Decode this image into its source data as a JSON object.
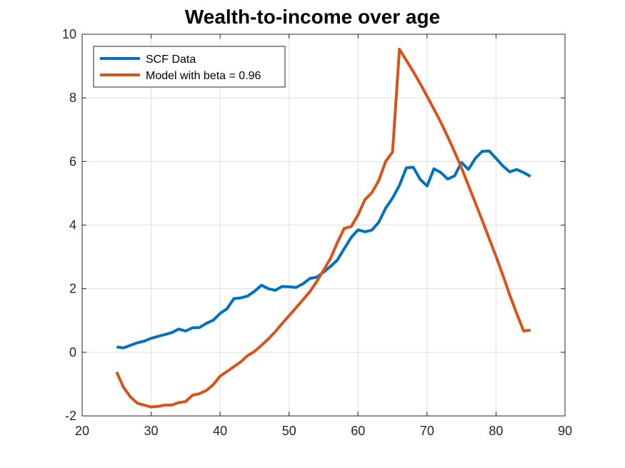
{
  "chart_data": {
    "type": "line",
    "title": "Wealth-to-income over age",
    "xlabel": "",
    "ylabel": "",
    "xlim": [
      20,
      90
    ],
    "ylim": [
      -2,
      10
    ],
    "xticks": [
      20,
      30,
      40,
      50,
      60,
      70,
      80,
      90
    ],
    "yticks": [
      -2,
      0,
      2,
      4,
      6,
      8,
      10
    ],
    "grid": true,
    "legend_position": "top-left",
    "series": [
      {
        "name": "SCF Data",
        "color": "#0072BD",
        "x": [
          25,
          26,
          27,
          28,
          29,
          30,
          31,
          32,
          33,
          34,
          35,
          36,
          37,
          38,
          39,
          40,
          41,
          42,
          43,
          44,
          45,
          46,
          47,
          48,
          49,
          50,
          51,
          52,
          53,
          54,
          55,
          56,
          57,
          58,
          59,
          60,
          61,
          62,
          63,
          64,
          65,
          66,
          67,
          68,
          69,
          70,
          71,
          72,
          73,
          74,
          75,
          76,
          77,
          78,
          79,
          80,
          81,
          82,
          83,
          84,
          85
        ],
        "y": [
          0.17,
          0.14,
          0.22,
          0.3,
          0.35,
          0.44,
          0.5,
          0.56,
          0.62,
          0.73,
          0.67,
          0.77,
          0.78,
          0.91,
          1.01,
          1.22,
          1.37,
          1.69,
          1.71,
          1.77,
          1.92,
          2.11,
          2.0,
          1.95,
          2.07,
          2.06,
          2.04,
          2.15,
          2.32,
          2.36,
          2.52,
          2.7,
          2.9,
          3.26,
          3.61,
          3.85,
          3.79,
          3.84,
          4.09,
          4.53,
          4.85,
          5.25,
          5.8,
          5.82,
          5.44,
          5.23,
          5.77,
          5.65,
          5.45,
          5.55,
          5.97,
          5.75,
          6.1,
          6.32,
          6.33,
          6.1,
          5.86,
          5.67,
          5.75,
          5.65,
          5.53
        ]
      },
      {
        "name": "Model with beta = 0.96",
        "color": "#D95319",
        "x": [
          25,
          26,
          27,
          28,
          29,
          30,
          31,
          32,
          33,
          34,
          35,
          36,
          37,
          38,
          39,
          40,
          41,
          42,
          43,
          44,
          45,
          46,
          47,
          48,
          49,
          50,
          51,
          52,
          53,
          54,
          55,
          56,
          57,
          58,
          59,
          60,
          61,
          62,
          63,
          64,
          65,
          66,
          67,
          68,
          69,
          70,
          71,
          72,
          73,
          74,
          75,
          76,
          77,
          78,
          79,
          80,
          81,
          82,
          83,
          84,
          85
        ],
        "y": [
          -0.62,
          -1.1,
          -1.4,
          -1.6,
          -1.66,
          -1.72,
          -1.7,
          -1.66,
          -1.66,
          -1.58,
          -1.55,
          -1.35,
          -1.3,
          -1.2,
          -1.02,
          -0.75,
          -0.6,
          -0.45,
          -0.3,
          -0.1,
          0.03,
          0.22,
          0.42,
          0.65,
          0.91,
          1.15,
          1.4,
          1.65,
          1.9,
          2.22,
          2.58,
          2.95,
          3.45,
          3.9,
          3.95,
          4.32,
          4.8,
          5.02,
          5.4,
          6.0,
          6.3,
          9.53,
          9.18,
          8.83,
          8.45,
          8.05,
          7.65,
          7.23,
          6.78,
          6.3,
          5.8,
          5.25,
          4.7,
          4.15,
          3.58,
          3.02,
          2.42,
          1.8,
          1.22,
          0.67,
          0.7
        ]
      }
    ]
  }
}
